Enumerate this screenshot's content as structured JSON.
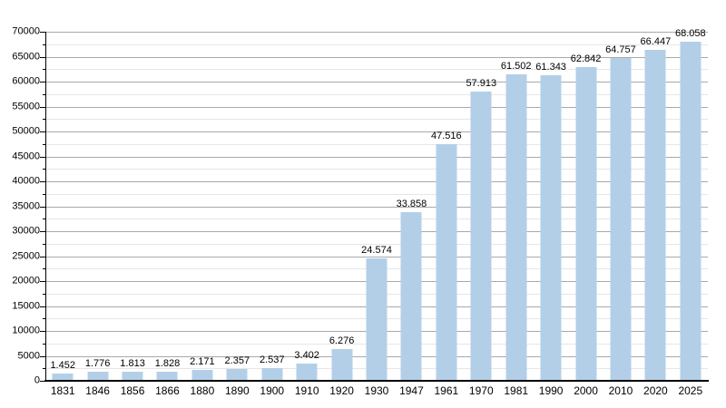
{
  "chart_data": {
    "type": "bar",
    "title": "",
    "xlabel": "",
    "ylabel": "",
    "categories": [
      "1831",
      "1846",
      "1856",
      "1866",
      "1880",
      "1890",
      "1900",
      "1910",
      "1920",
      "1930",
      "1947",
      "1961",
      "1970",
      "1981",
      "1990",
      "2000",
      "2010",
      "2020",
      "2025"
    ],
    "values": [
      1452,
      1776,
      1813,
      1828,
      2171,
      2357,
      2537,
      3402,
      6276,
      24574,
      33858,
      47516,
      57913,
      61502,
      61343,
      62842,
      64757,
      66447,
      68058
    ],
    "value_labels": [
      "1.452",
      "1.776",
      "1.813",
      "1.828",
      "2.171",
      "2.357",
      "2.537",
      "3.402",
      "6.276",
      "24.574",
      "33.858",
      "47.516",
      "57.913",
      "61.502",
      "61.343",
      "62.842",
      "64.757",
      "66.447",
      "68.058"
    ],
    "ylim": [
      0,
      70000
    ],
    "y_major_step": 5000,
    "y_minor_step": 2500,
    "y_tick_labels": [
      "0",
      "5000",
      "10000",
      "15000",
      "20000",
      "25000",
      "30000",
      "35000",
      "40000",
      "45000",
      "50000",
      "55000",
      "60000",
      "65000",
      "70000"
    ],
    "grid": true,
    "legend": false,
    "colors": {
      "bar_fill": "#b3cfe8",
      "grid_major": "#a9a9a9",
      "grid_minor": "#e6e6e6",
      "axis": "#000000",
      "text": "#000000",
      "background": "#ffffff"
    }
  }
}
